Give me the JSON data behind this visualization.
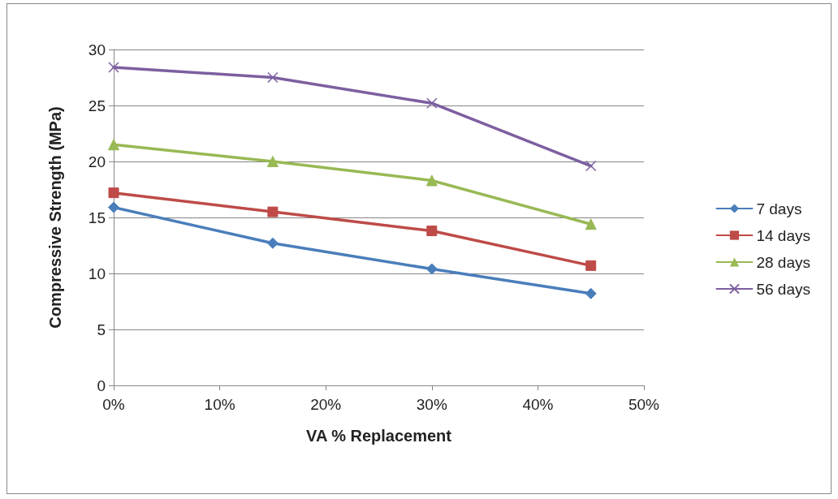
{
  "chart_data": {
    "type": "line",
    "xlabel": "VA % Replacement",
    "ylabel": "Compressive Strength (MPa)",
    "x": [
      0,
      15,
      30,
      45
    ],
    "xlim": [
      0,
      50
    ],
    "xticks": [
      {
        "value": 0,
        "label": "0%"
      },
      {
        "value": 10,
        "label": "10%"
      },
      {
        "value": 20,
        "label": "20%"
      },
      {
        "value": 30,
        "label": "30%"
      },
      {
        "value": 40,
        "label": "40%"
      },
      {
        "value": 50,
        "label": "50%"
      }
    ],
    "ylim": [
      0,
      30
    ],
    "yticks": [
      0,
      5,
      10,
      15,
      20,
      25,
      30
    ],
    "grid": "y",
    "legend": "right",
    "line_style": "solid",
    "series": [
      {
        "name": "7 days",
        "color": "#4a7ebb",
        "marker": "diamond",
        "values": [
          15.9,
          12.7,
          10.4,
          8.2
        ]
      },
      {
        "name": "14 days",
        "color": "#be4b48",
        "marker": "square",
        "values": [
          17.2,
          15.5,
          13.8,
          10.7
        ]
      },
      {
        "name": "28 days",
        "color": "#98b954",
        "marker": "triangle",
        "values": [
          21.5,
          20.0,
          18.3,
          14.4
        ]
      },
      {
        "name": "56 days",
        "color": "#7d5fa0",
        "marker": "cross",
        "values": [
          28.4,
          27.5,
          25.2,
          19.6
        ]
      }
    ]
  }
}
